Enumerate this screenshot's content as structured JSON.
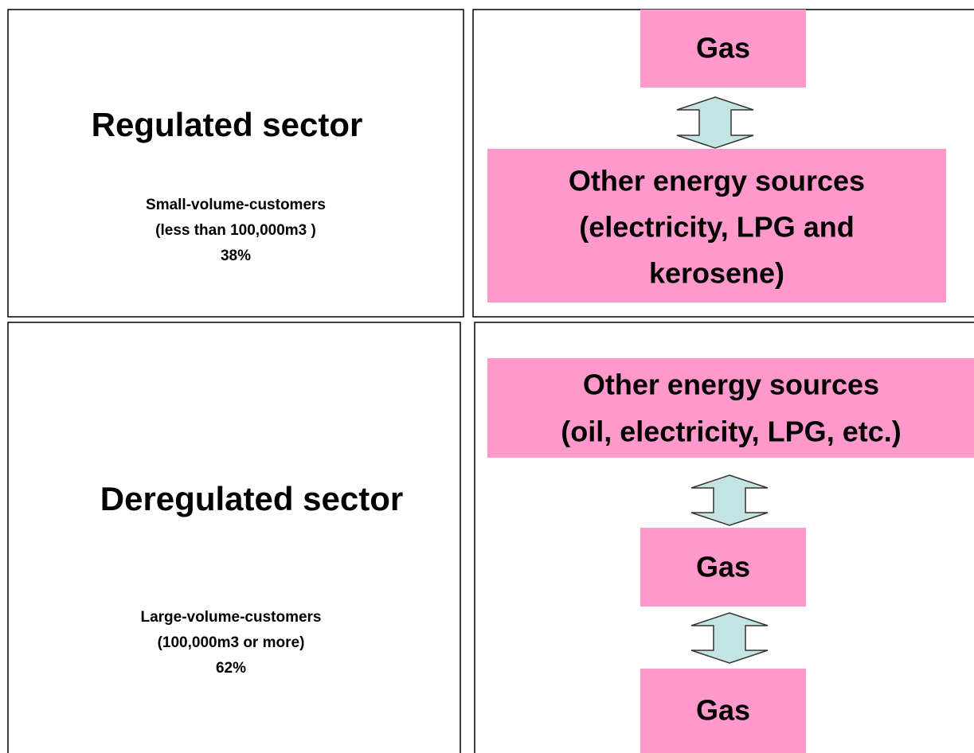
{
  "regulated": {
    "title": "Regulated sector",
    "lines": [
      "Small-volume-customers",
      "(less than 100,000m3 )",
      "38%"
    ],
    "boxes": [
      {
        "lines": [
          "Gas"
        ]
      },
      {
        "lines": [
          "Other energy sources",
          "(electricity, LPG and",
          "kerosene)"
        ]
      }
    ]
  },
  "deregulated": {
    "title": "Deregulated sector",
    "lines": [
      "Large-volume-customers",
      "(100,000m3 or more)",
      "62%"
    ],
    "boxes": [
      {
        "lines": [
          "Other energy sources",
          "(oil, electricity, LPG, etc.)"
        ]
      },
      {
        "lines": [
          "Gas"
        ]
      },
      {
        "lines": [
          "Gas"
        ]
      }
    ]
  }
}
